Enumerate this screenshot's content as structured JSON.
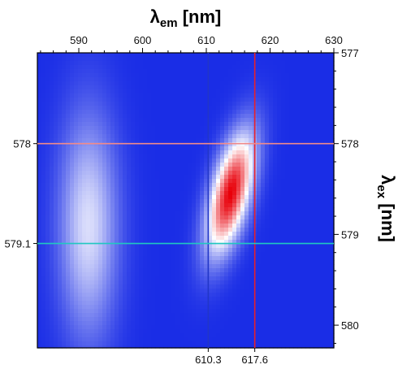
{
  "chart_data": {
    "type": "heatmap",
    "title": "",
    "x_axis": {
      "label": "λem [nm]",
      "label_main": "λ",
      "label_sub": "em",
      "label_unit": " [nm]",
      "range": [
        583.5,
        630
      ],
      "ticks": [
        590,
        600,
        610,
        620,
        630
      ],
      "position": "top"
    },
    "y_axis": {
      "label": "λex [nm]",
      "label_main": "λ",
      "label_sub": "ex",
      "label_unit": " [nm]",
      "range": [
        577,
        580.25
      ],
      "ticks": [
        577,
        578,
        579,
        580
      ],
      "position": "right",
      "inverted": true
    },
    "colormap": [
      "#1a2de6",
      "#ffffff",
      "#e8000a"
    ],
    "markers": {
      "vertical": [
        {
          "value": 610.3,
          "label": "610.3",
          "color": "#2236c8"
        },
        {
          "value": 617.6,
          "label": "617.6",
          "color": "#e8202a"
        }
      ],
      "horizontal": [
        {
          "value": 578.0,
          "label": "578",
          "color": "#f08a8a"
        },
        {
          "value": 579.1,
          "label": "579.1",
          "color": "#20c8c0"
        }
      ]
    },
    "features": [
      {
        "name": "weak band",
        "em_center": 591.5,
        "em_width": 3.2,
        "ex_center": 578.9,
        "ex_width": 0.85,
        "intensity": 0.42,
        "tilt": 0.0
      },
      {
        "name": "main peak",
        "em_center": 613.8,
        "em_width": 2.1,
        "ex_center": 578.55,
        "ex_width": 0.45,
        "intensity": 1.0,
        "tilt": 3.2
      }
    ]
  }
}
